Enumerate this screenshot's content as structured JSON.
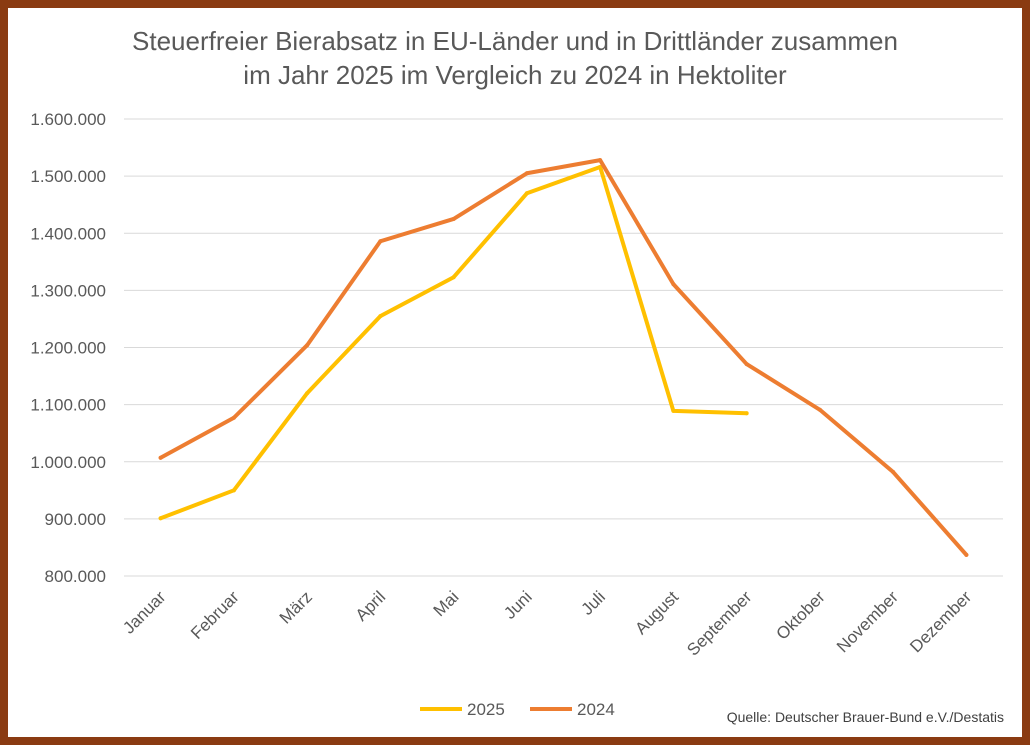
{
  "chart_data": {
    "type": "line",
    "title_lines": [
      "Steuerfreier Bierabsatz in EU-Länder und in Drittländer zusammen",
      "im Jahr 2025 im Vergleich zu 2024 in Hektoliter"
    ],
    "categories": [
      "Januar",
      "Februar",
      "März",
      "April",
      "Mai",
      "Juni",
      "Juli",
      "August",
      "September",
      "Oktober",
      "November",
      "Dezember"
    ],
    "ylim": [
      800000,
      1600000
    ],
    "yticks": [
      800000,
      900000,
      1000000,
      1100000,
      1200000,
      1300000,
      1400000,
      1500000,
      1600000
    ],
    "ytick_labels": [
      "800.000",
      "900.000",
      "1.000.000",
      "1.100.000",
      "1.200.000",
      "1.300.000",
      "1.400.000",
      "1.500.000",
      "1.600.000"
    ],
    "grid": true,
    "legend_position": "bottom",
    "series": [
      {
        "name": "2025",
        "color": "#ffc000",
        "values": [
          901000,
          950000,
          1120000,
          1255000,
          1323000,
          1470000,
          1516000,
          1089000,
          1085000,
          null,
          null,
          null
        ]
      },
      {
        "name": "2024",
        "color": "#ed7d31",
        "values": [
          1007000,
          1077000,
          1204000,
          1386000,
          1425000,
          1505000,
          1528000,
          1311000,
          1171000,
          1091000,
          982000,
          837000
        ]
      }
    ],
    "source": "Quelle: Deutscher Brauer-Bund e.V./Destatis"
  },
  "frame_color": "#8a3b12"
}
